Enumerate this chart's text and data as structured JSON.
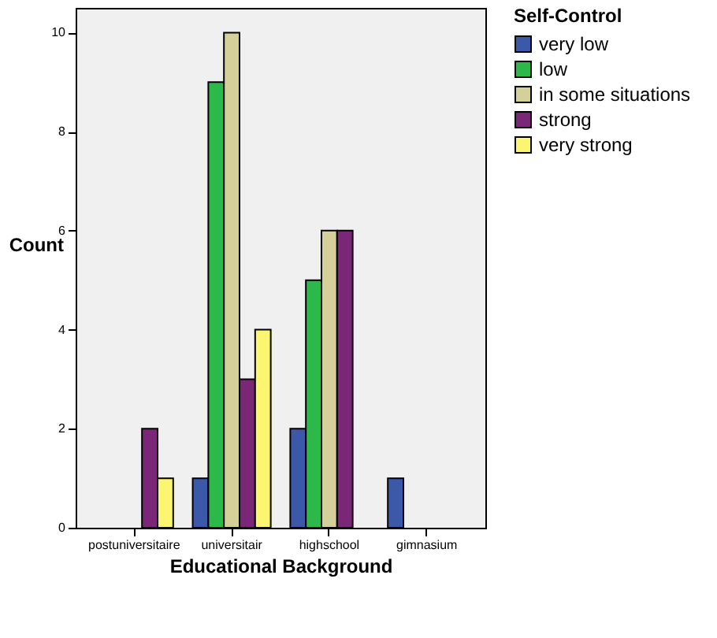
{
  "chart_data": {
    "type": "bar",
    "xlabel": "Educational Background",
    "ylabel": "Count",
    "legend_title": "Self-Control",
    "categories": [
      "postuniversitaire",
      "universitair",
      "highschool",
      "gimnasium"
    ],
    "series": [
      {
        "name": "very low",
        "color": "#3c58a8",
        "values": [
          null,
          1,
          2,
          1
        ]
      },
      {
        "name": "low",
        "color": "#2db84a",
        "values": [
          null,
          9,
          5,
          null
        ]
      },
      {
        "name": "in some situations",
        "color": "#d5d09a",
        "values": [
          null,
          10,
          6,
          null
        ]
      },
      {
        "name": "strong",
        "color": "#7b2777",
        "values": [
          2,
          3,
          6,
          null
        ]
      },
      {
        "name": "very strong",
        "color": "#fbf571",
        "values": [
          1,
          4,
          null,
          null
        ]
      }
    ],
    "ylim": [
      0,
      10.5
    ],
    "yticks": [
      0,
      2,
      4,
      6,
      8,
      10
    ],
    "grid": false,
    "legend": "right"
  }
}
